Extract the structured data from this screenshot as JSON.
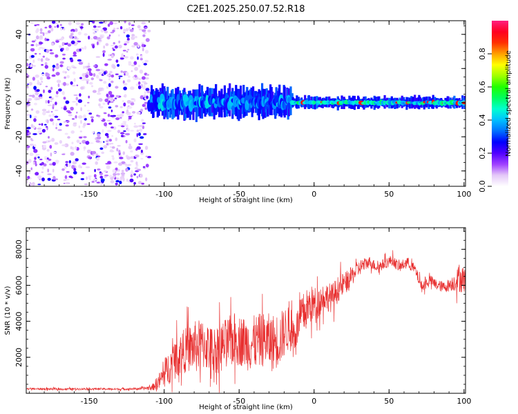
{
  "chart_data": [
    {
      "type": "heatmap",
      "title": "C2E1.2025.250.07.52.R18",
      "xlabel": "Height of straight line (km)",
      "ylabel": "Frequency (Hz)",
      "xlim": [
        -192,
        101
      ],
      "ylim": [
        -49,
        48
      ],
      "xticks": [
        -150,
        -100,
        -50,
        0,
        50,
        100
      ],
      "yticks": [
        -40,
        -20,
        0,
        20,
        40
      ],
      "colorbar": {
        "label": "Normalized spectral amplitude",
        "range": [
          0,
          1
        ],
        "ticks": [
          0.0,
          0.2,
          0.4,
          0.6,
          0.8
        ],
        "tick_labels": [
          "0.0",
          "0.2",
          "0.4",
          "0.6",
          "0.8"
        ],
        "colors": [
          "#ffffff",
          "#e4c8f8",
          "#a040ff",
          "#5000ff",
          "#0000ff",
          "#0070ff",
          "#00c0ff",
          "#00ffd0",
          "#00ff60",
          "#20ff00",
          "#a0ff00",
          "#ffff00",
          "#ffa000",
          "#ff3000",
          "#ff0020",
          "#ff2080"
        ]
      },
      "regions": [
        {
          "x_range": [
            -192,
            -110
          ],
          "freq_range": [
            -48,
            48
          ],
          "description": "scattered low-amplitude noise",
          "amplitude": 0.1
        },
        {
          "x_range": [
            -110,
            -15
          ],
          "freq_center": 0,
          "freq_halfwidth": 7,
          "amplitude": 0.3
        },
        {
          "x_range": [
            -15,
            101
          ],
          "freq_center": 0,
          "freq_halfwidth": 3,
          "amplitude": 0.4,
          "peak_amplitude": 0.9
        }
      ]
    },
    {
      "type": "line",
      "title": "",
      "xlabel": "Height of straight line (km)",
      "ylabel": "SNR (10 * v/v)",
      "xlim": [
        -192,
        101
      ],
      "ylim": [
        0,
        9200
      ],
      "xticks": [
        -150,
        -100,
        -50,
        0,
        50,
        100
      ],
      "yticks": [
        2000,
        4000,
        6000,
        8000
      ],
      "color": "#e83030",
      "series": [
        {
          "name": "SNR",
          "x": [
            -192,
            -170,
            -150,
            -130,
            -115,
            -108,
            -103,
            -98,
            -93,
            -88,
            -83,
            -78,
            -73,
            -68,
            -63,
            -58,
            -53,
            -48,
            -43,
            -38,
            -33,
            -28,
            -23,
            -18,
            -13,
            -8,
            -3,
            2,
            7,
            12,
            17,
            22,
            27,
            32,
            37,
            42,
            47,
            52,
            57,
            62,
            67,
            72,
            77,
            82,
            87,
            92,
            97,
            101
          ],
          "y": [
            250,
            230,
            250,
            230,
            260,
            320,
            700,
            1300,
            1900,
            2300,
            2500,
            2600,
            2700,
            2400,
            2500,
            2800,
            3000,
            2900,
            2700,
            2900,
            3000,
            2800,
            3000,
            3600,
            3300,
            4300,
            4900,
            5000,
            5400,
            5300,
            5900,
            6200,
            6700,
            7100,
            7300,
            7000,
            7200,
            7400,
            7000,
            7300,
            6900,
            5900,
            6300,
            6000,
            5900,
            6100,
            6400,
            6300
          ],
          "amplitude": [
            60,
            60,
            60,
            60,
            70,
            150,
            500,
            900,
            1100,
            1200,
            1300,
            1500,
            1400,
            1300,
            1400,
            1400,
            1500,
            1400,
            1500,
            1500,
            1500,
            1600,
            1500,
            1300,
            1000,
            1200,
            1100,
            900,
            800,
            800,
            700,
            600,
            500,
            400,
            300,
            300,
            300,
            300,
            300,
            300,
            300,
            300,
            300,
            300,
            300,
            400,
            800,
            700
          ]
        }
      ]
    }
  ]
}
